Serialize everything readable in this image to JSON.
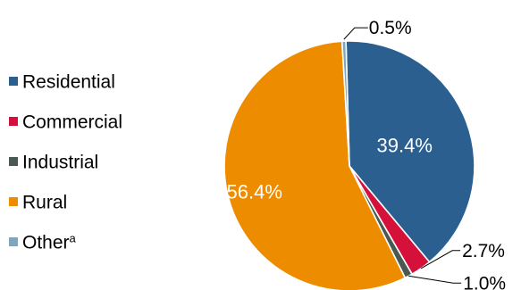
{
  "chart_data": {
    "type": "pie",
    "title": "",
    "categories": [
      "Residential",
      "Commercial",
      "Industrial",
      "Rural",
      "Other"
    ],
    "values": [
      39.4,
      2.7,
      1.0,
      56.4,
      0.5
    ],
    "value_labels": [
      "39.4%",
      "2.7%",
      "1.0%",
      "56.4%",
      "0.5%"
    ],
    "legend": {
      "placement": "left",
      "entries": [
        {
          "label": "Residential",
          "superscript": ""
        },
        {
          "label": "Commercial",
          "superscript": ""
        },
        {
          "label": "Industrial",
          "superscript": ""
        },
        {
          "label": "Rural",
          "superscript": ""
        },
        {
          "label": "Other",
          "superscript": "a"
        }
      ]
    },
    "colors": [
      "#2a5f8f",
      "#d4103b",
      "#4a5a52",
      "#ee8c00",
      "#7fa6bf"
    ],
    "label_placement": [
      "inside",
      "outside",
      "outside",
      "inside",
      "outside"
    ]
  }
}
